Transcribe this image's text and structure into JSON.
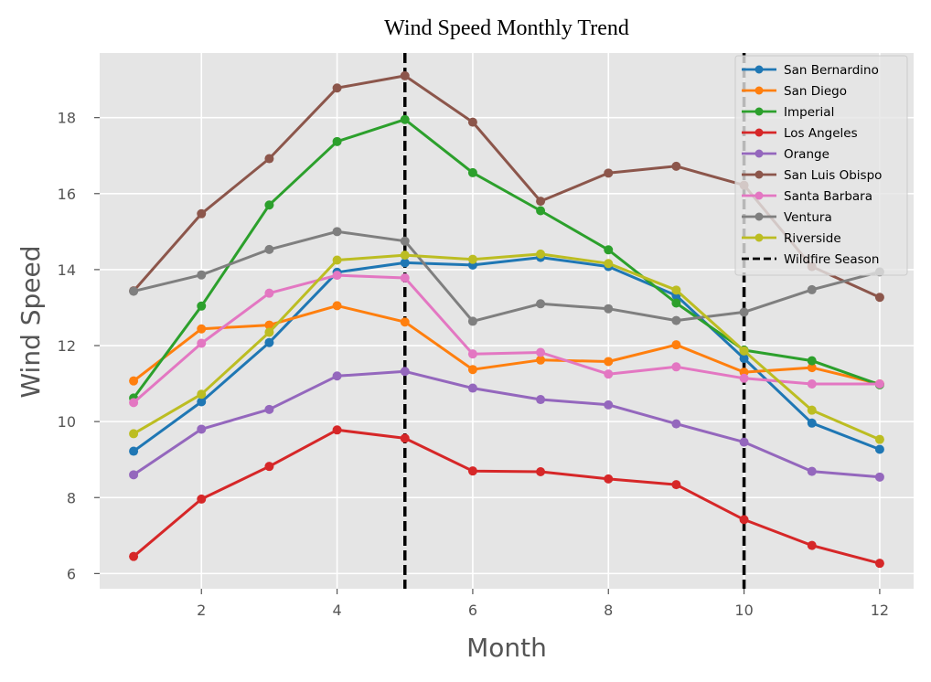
{
  "chart_data": {
    "type": "line",
    "title": "Wind Speed Monthly Trend",
    "xlabel": "Month",
    "ylabel": "Wind Speed",
    "xlim": [
      0.5,
      12.5
    ],
    "ylim": [
      5.6,
      19.7
    ],
    "xticks": [
      2,
      4,
      6,
      8,
      10,
      12
    ],
    "yticks": [
      6,
      8,
      10,
      12,
      14,
      16,
      18
    ],
    "grid": true,
    "legend_position": "top-right",
    "x": [
      1,
      2,
      3,
      4,
      5,
      6,
      7,
      8,
      9,
      10,
      11,
      12
    ],
    "series": [
      {
        "name": "San Bernardino",
        "color": "#1f77b4",
        "values": [
          9.22,
          10.52,
          12.08,
          13.93,
          14.18,
          14.12,
          14.32,
          14.08,
          13.32,
          11.66,
          9.96,
          9.27
        ]
      },
      {
        "name": "San Diego",
        "color": "#ff7f0e",
        "values": [
          11.07,
          12.44,
          12.54,
          13.05,
          12.62,
          11.37,
          11.62,
          11.58,
          12.02,
          11.3,
          11.42,
          10.99
        ]
      },
      {
        "name": "Imperial",
        "color": "#2ca02c",
        "values": [
          10.62,
          13.04,
          15.7,
          17.37,
          17.95,
          16.55,
          15.55,
          14.52,
          13.12,
          11.88,
          11.6,
          10.97
        ]
      },
      {
        "name": "Los Angeles",
        "color": "#d62728",
        "values": [
          6.45,
          7.96,
          8.82,
          9.78,
          9.56,
          8.7,
          8.68,
          8.49,
          8.34,
          7.42,
          6.74,
          6.27
        ]
      },
      {
        "name": "Orange",
        "color": "#9467bd",
        "values": [
          8.6,
          9.8,
          10.32,
          11.2,
          11.32,
          10.88,
          10.58,
          10.44,
          9.94,
          9.46,
          8.69,
          8.54
        ]
      },
      {
        "name": "San Luis Obispo",
        "color": "#8c564b",
        "values": [
          13.44,
          15.47,
          16.92,
          18.78,
          19.1,
          17.88,
          15.8,
          16.54,
          16.72,
          16.22,
          14.08,
          13.27
        ]
      },
      {
        "name": "Santa Barbara",
        "color": "#e377c2",
        "values": [
          10.5,
          12.06,
          13.38,
          13.85,
          13.78,
          11.78,
          11.82,
          11.25,
          11.44,
          11.14,
          10.99,
          10.99
        ]
      },
      {
        "name": "Ventura",
        "color": "#7f7f7f",
        "values": [
          13.43,
          13.86,
          14.53,
          15.0,
          14.75,
          12.64,
          13.1,
          12.97,
          12.66,
          12.88,
          13.47,
          13.94
        ]
      },
      {
        "name": "Riverside",
        "color": "#bcbd22",
        "values": [
          9.68,
          10.72,
          12.35,
          14.25,
          14.38,
          14.27,
          14.41,
          14.16,
          13.46,
          11.86,
          10.3,
          9.53
        ]
      }
    ],
    "vlines": {
      "name": "Wildfire Season",
      "color": "#000000",
      "x": [
        5,
        10
      ]
    }
  }
}
